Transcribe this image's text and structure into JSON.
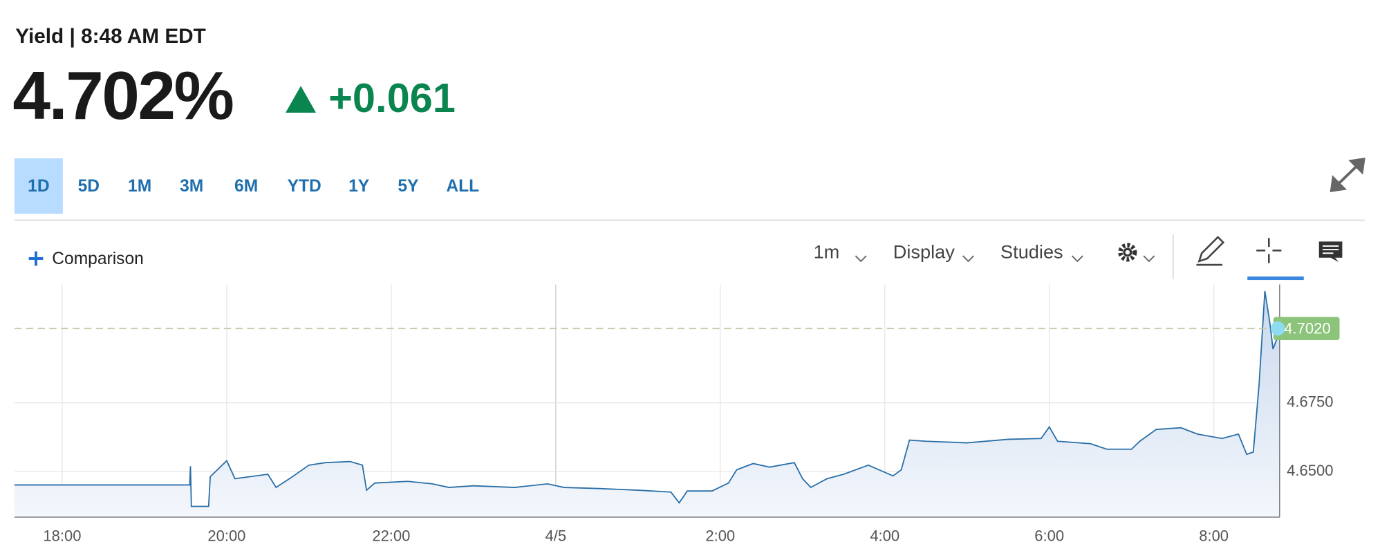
{
  "header": {
    "title": "Yield | 8:48 AM EDT",
    "price": "4.702%",
    "change": "+0.061"
  },
  "ranges": [
    "1D",
    "5D",
    "1M",
    "3M",
    "6M",
    "YTD",
    "1Y",
    "5Y",
    "ALL"
  ],
  "toolbar": {
    "comparison": "Comparison",
    "interval": "1m",
    "display": "Display",
    "studies": "Studies"
  },
  "chart_data": {
    "type": "line",
    "color": "#2a6fa8",
    "x": [
      17.42,
      19.55,
      19.56,
      19.57,
      19.78,
      19.8,
      20.0,
      20.1,
      20.5,
      20.6,
      20.8,
      21.0,
      21.2,
      21.5,
      21.65,
      21.7,
      21.8,
      22.2,
      22.5,
      22.7,
      23.0,
      23.5,
      23.9,
      24.1,
      24.5,
      25.0,
      25.4,
      25.5,
      25.6,
      25.9,
      26.1,
      26.2,
      26.4,
      26.6,
      26.9,
      27.0,
      27.1,
      27.3,
      27.5,
      27.8,
      28.1,
      28.2,
      28.3,
      28.5,
      29.0,
      29.5,
      29.9,
      30.0,
      30.1,
      30.5,
      30.7,
      31.0,
      31.1,
      31.3,
      31.6,
      31.8,
      32.1,
      32.3,
      32.4,
      32.48,
      32.55,
      32.62,
      32.68,
      32.72,
      32.78,
      32.8
    ],
    "values": [
      4.6451,
      4.6451,
      4.6519,
      4.6373,
      4.6373,
      4.6481,
      4.6539,
      4.6474,
      4.649,
      4.6442,
      4.6481,
      4.6523,
      4.6532,
      4.6536,
      4.6523,
      4.6432,
      4.6458,
      4.6464,
      4.6455,
      4.6442,
      4.6448,
      4.6442,
      4.6455,
      4.6442,
      4.6438,
      4.6432,
      4.6425,
      4.6386,
      4.6429,
      4.6429,
      4.6458,
      4.6506,
      4.6529,
      4.6516,
      4.6532,
      4.6474,
      4.6442,
      4.6474,
      4.649,
      4.6523,
      4.6484,
      4.6506,
      4.6614,
      4.661,
      4.6604,
      4.6617,
      4.662,
      4.6662,
      4.661,
      4.6601,
      4.6581,
      4.6581,
      4.661,
      4.6653,
      4.6659,
      4.6636,
      4.662,
      4.6636,
      4.6562,
      4.6571,
      4.6815,
      4.7156,
      4.7042,
      4.6945,
      4.6994,
      4.702
    ],
    "xlim": [
      17.42,
      32.8
    ],
    "xticks": [
      {
        "value": 18,
        "label": "18:00"
      },
      {
        "value": 20,
        "label": "20:00"
      },
      {
        "value": 22,
        "label": "22:00"
      },
      {
        "value": 24,
        "label": "4/5"
      },
      {
        "value": 26,
        "label": "2:00"
      },
      {
        "value": 28,
        "label": "4:00"
      },
      {
        "value": 30,
        "label": "6:00"
      },
      {
        "value": 32,
        "label": "8:00"
      }
    ],
    "ylim": [
      4.6334,
      4.718
    ],
    "yticks": [
      {
        "value": 4.65,
        "label": "4.6500"
      },
      {
        "value": 4.675,
        "label": "4.6750"
      }
    ],
    "last_value": {
      "value": 4.702,
      "label": "4.7020"
    },
    "grid": true
  }
}
